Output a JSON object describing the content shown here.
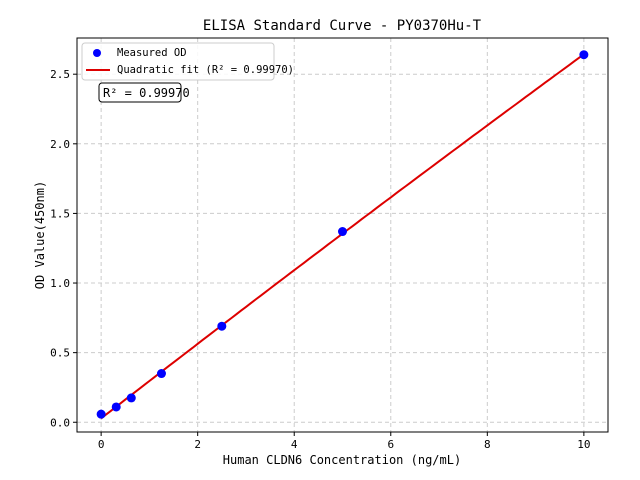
{
  "chart_data": {
    "type": "scatter",
    "title": "ELISA Standard Curve - PY0370Hu-T",
    "xlabel": "Human CLDN6 Concentration (ng/mL)",
    "ylabel": "OD Value(450nm)",
    "xlim": [
      -0.5,
      10.5
    ],
    "ylim": [
      -0.07,
      2.76
    ],
    "xticks": [
      0,
      2,
      4,
      6,
      8,
      10
    ],
    "yticks": [
      0.0,
      0.5,
      1.0,
      1.5,
      2.0,
      2.5
    ],
    "grid": true,
    "legend_position": "top-left",
    "series": [
      {
        "name": "Measured OD",
        "kind": "scatter",
        "color": "#0000ff",
        "x": [
          0,
          0.3125,
          0.625,
          1.25,
          2.5,
          5,
          10
        ],
        "y": [
          0.058,
          0.11,
          0.175,
          0.35,
          0.69,
          1.37,
          2.64
        ]
      },
      {
        "name": "Quadratic fit (R² = 0.99970)",
        "kind": "line",
        "color": "#dd0000"
      }
    ],
    "annotation": "R² = 0.99970"
  }
}
